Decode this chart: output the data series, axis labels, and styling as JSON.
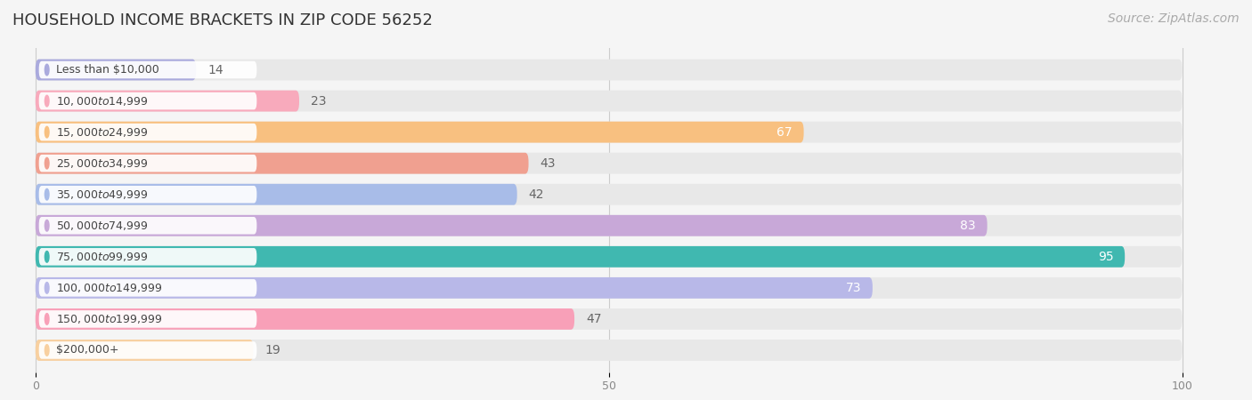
{
  "title": "HOUSEHOLD INCOME BRACKETS IN ZIP CODE 56252",
  "source": "Source: ZipAtlas.com",
  "categories": [
    "Less than $10,000",
    "$10,000 to $14,999",
    "$15,000 to $24,999",
    "$25,000 to $34,999",
    "$35,000 to $49,999",
    "$50,000 to $74,999",
    "$75,000 to $99,999",
    "$100,000 to $149,999",
    "$150,000 to $199,999",
    "$200,000+"
  ],
  "values": [
    14,
    23,
    67,
    43,
    42,
    83,
    95,
    73,
    47,
    19
  ],
  "bar_colors": [
    "#aaaadd",
    "#f8aabc",
    "#f8c080",
    "#f0a090",
    "#a8bce8",
    "#c8a8d8",
    "#40b8b0",
    "#b8b8e8",
    "#f8a0b8",
    "#f8d0a0"
  ],
  "label_colors": [
    "#666666",
    "#666666",
    "#ffffff",
    "#666666",
    "#666666",
    "#ffffff",
    "#ffffff",
    "#ffffff",
    "#666666",
    "#666666"
  ],
  "xlim": [
    -2,
    105
  ],
  "xticks": [
    0,
    50,
    100
  ],
  "background_color": "#f5f5f5",
  "bar_background_color": "#e8e8e8",
  "title_fontsize": 13,
  "source_fontsize": 10,
  "label_fontsize": 9,
  "value_fontsize": 10
}
